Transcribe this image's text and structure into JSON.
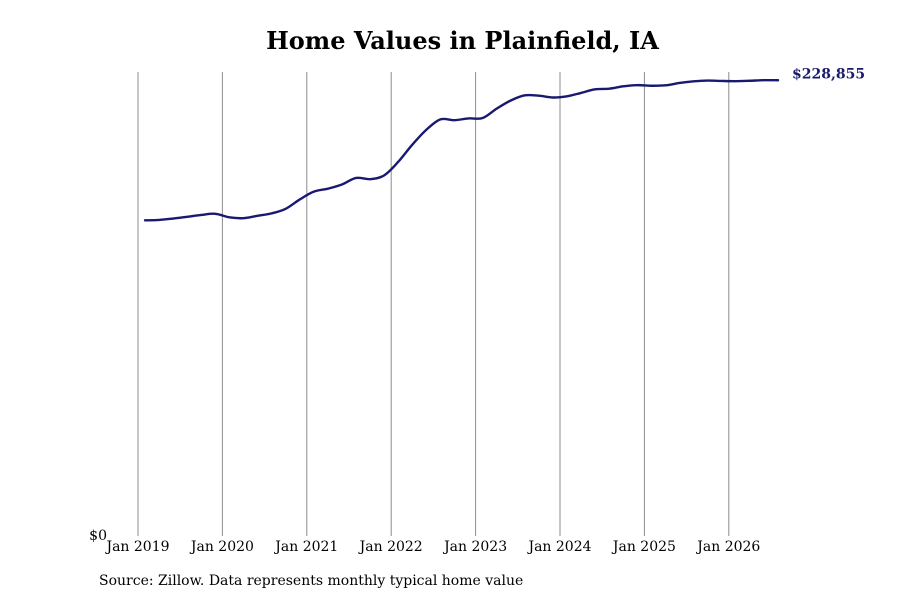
{
  "chart_data": {
    "type": "line",
    "title": "Home Values in Plainfield, IA",
    "xlabel": "",
    "ylabel": "",
    "x_ticks": [
      "Jan 2019",
      "Jan 2020",
      "Jan 2021",
      "Jan 2022",
      "Jan 2023",
      "Jan 2024",
      "Jan 2025",
      "Jan 2026"
    ],
    "y_ticks": [
      "$0"
    ],
    "ylim": [
      0,
      233000
    ],
    "grid": "vertical",
    "line_color": "#191970",
    "end_value_label": "$228,855",
    "series": [
      {
        "name": "",
        "x": [
          "2019-02",
          "2019-04",
          "2019-06",
          "2019-08",
          "2019-10",
          "2019-12",
          "2020-02",
          "2020-04",
          "2020-06",
          "2020-08",
          "2020-10",
          "2020-12",
          "2021-02",
          "2021-04",
          "2021-06",
          "2021-08",
          "2021-10",
          "2021-12",
          "2022-02",
          "2022-04",
          "2022-06",
          "2022-08",
          "2022-10",
          "2022-12",
          "2023-02",
          "2023-04",
          "2023-06",
          "2023-08",
          "2023-10",
          "2023-12",
          "2024-02",
          "2024-04",
          "2024-06",
          "2024-08",
          "2024-10",
          "2024-12",
          "2025-02",
          "2025-04",
          "2025-06",
          "2025-08",
          "2025-10",
          "2025-12",
          "2026-02",
          "2026-04",
          "2026-06",
          "2026-08"
        ],
        "values": [
          158500,
          158700,
          159400,
          160300,
          161200,
          161800,
          160000,
          159600,
          160800,
          162000,
          164300,
          169000,
          172900,
          174400,
          176500,
          179800,
          179200,
          181100,
          187900,
          196500,
          204000,
          209200,
          208800,
          209700,
          209900,
          214600,
          218700,
          221300,
          221100,
          220200,
          220800,
          222500,
          224300,
          224600,
          225800,
          226400,
          226100,
          226300,
          227500,
          228300,
          228700,
          228500,
          228400,
          228600,
          228900,
          228855
        ]
      }
    ]
  },
  "source": "Source: Zillow. Data represents monthly typical home value"
}
